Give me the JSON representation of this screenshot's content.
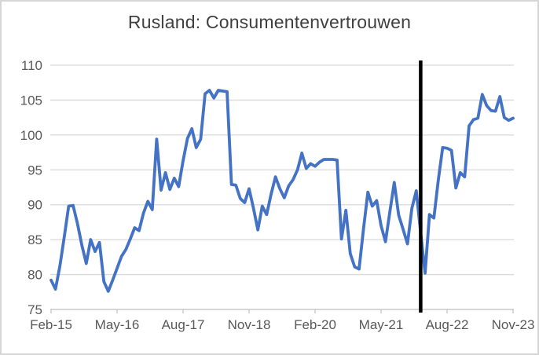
{
  "title": "Rusland: Consumentenvertrouwen",
  "colors": {
    "line": "#4472C4",
    "event_line": "#000000",
    "gridline": "#D9D9D9",
    "axis": "#BFBFBF",
    "axis_text": "#595959",
    "title_text": "#404040",
    "background": "#FFFFFF"
  },
  "chart_data": {
    "type": "line",
    "title": "Rusland: Consumentenvertrouwen",
    "series_name": "Consumentenvertrouwen Rusland",
    "freq": "monthly",
    "start_month": "Feb-15",
    "end_month": "Nov-23",
    "x_tick_labels": [
      "Feb-15",
      "May-16",
      "Aug-17",
      "Nov-18",
      "Feb-20",
      "May-21",
      "Aug-22",
      "Nov-23"
    ],
    "x_tick_indices": [
      0,
      15,
      30,
      45,
      60,
      75,
      90,
      105
    ],
    "y_ticks": [
      75,
      80,
      85,
      90,
      95,
      100,
      105,
      110
    ],
    "ylim": [
      75,
      110
    ],
    "grid": "horizontal",
    "legend": "none",
    "line_color": "#4472C4",
    "event_line": {
      "label": "Feb-22",
      "month_index": 84,
      "color": "#000000"
    },
    "values": [
      79.2,
      77.9,
      81.2,
      85.4,
      89.8,
      89.9,
      87.3,
      84.2,
      81.6,
      85.0,
      83.3,
      84.6,
      79.0,
      77.6,
      79.2,
      80.9,
      82.6,
      83.6,
      85.1,
      86.7,
      86.3,
      88.8,
      90.5,
      89.3,
      99.4,
      92.1,
      94.6,
      92.2,
      93.8,
      92.6,
      96.3,
      99.5,
      100.9,
      98.2,
      99.4,
      105.9,
      106.4,
      105.3,
      106.4,
      106.3,
      106.2,
      92.9,
      92.8,
      90.9,
      90.3,
      92.3,
      89.5,
      86.4,
      89.8,
      88.6,
      91.5,
      94.0,
      92.3,
      91.0,
      92.7,
      93.6,
      95.0,
      97.4,
      95.2,
      95.9,
      95.5,
      96.1,
      96.5,
      96.5,
      96.5,
      96.4,
      85.1,
      89.2,
      83.0,
      81.1,
      80.8,
      86.5,
      91.8,
      89.8,
      90.6,
      87.0,
      84.7,
      89.0,
      93.2,
      88.5,
      86.5,
      84.4,
      89.5,
      92.0,
      86.0,
      80.2,
      88.6,
      88.1,
      93.5,
      98.2,
      98.1,
      97.8,
      92.4,
      94.6,
      94.0,
      101.3,
      102.2,
      102.4,
      105.8,
      104.2,
      103.5,
      103.4,
      105.5,
      102.5,
      102.1,
      102.4
    ]
  }
}
